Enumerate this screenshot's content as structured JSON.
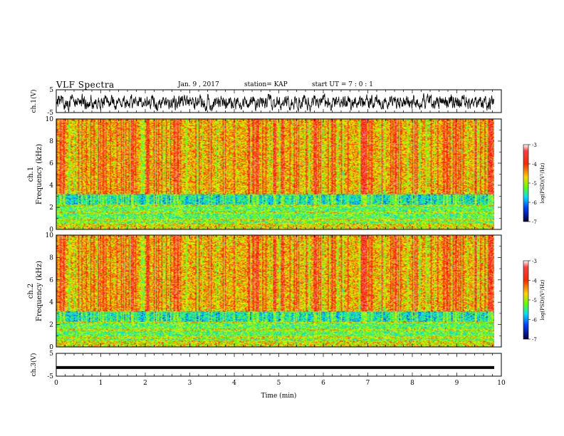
{
  "header": {
    "title": "VLF Spectra",
    "date": "Jan. 9 , 2017",
    "station": "station= KAP",
    "start": "start UT = 7 : 0 : 1"
  },
  "chart_data": {
    "type": "heatmap",
    "xlabel": "Time (min)",
    "xlim": [
      0,
      10
    ],
    "x_ticks": [
      "0",
      "1",
      "2",
      "3",
      "4",
      "5",
      "6",
      "7",
      "8",
      "9",
      "10"
    ],
    "panels": [
      {
        "id": "ch1-waveform",
        "type": "line",
        "ylabel": "ch.1(V)",
        "ylim": [
          -5,
          5
        ],
        "y_ticks": [
          "5",
          "-5"
        ]
      },
      {
        "id": "ch1-spectrogram",
        "type": "heatmap",
        "ylabel_channel": "ch.1",
        "ylabel": "Frequency (kHz)",
        "ylim": [
          0,
          10
        ],
        "y_ticks": [
          "0",
          "2",
          "4",
          "6",
          "8",
          "10"
        ],
        "colorbar": {
          "label": "log(PSD)(V²/Hz)",
          "range": [
            -7,
            -3
          ],
          "ticks": [
            "-3",
            "-4",
            "-5",
            "-6",
            "-7"
          ]
        }
      },
      {
        "id": "ch2-spectrogram",
        "type": "heatmap",
        "ylabel_channel": "ch.2",
        "ylabel": "Frequency (kHz)",
        "ylim": [
          0,
          10
        ],
        "y_ticks": [
          "0",
          "2",
          "4",
          "6",
          "8",
          "10"
        ],
        "colorbar": {
          "label": "log(PSD)(V²/Hz)",
          "range": [
            -7,
            -3
          ],
          "ticks": [
            "-3",
            "-4",
            "-5",
            "-6",
            "-7"
          ]
        }
      },
      {
        "id": "ch3-waveform",
        "type": "line",
        "ylabel": "ch.3(V)",
        "ylim": [
          -5,
          5
        ],
        "y_ticks": [
          "5",
          "-5"
        ]
      }
    ]
  }
}
